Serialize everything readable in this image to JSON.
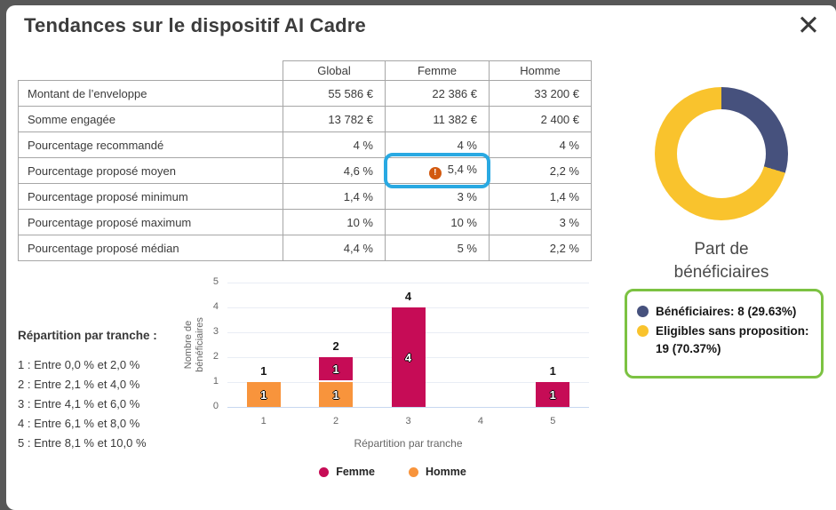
{
  "modal": {
    "title": "Tendances sur le dispositif AI Cadre",
    "close_label": "✕"
  },
  "table": {
    "columns": [
      "Global",
      "Femme",
      "Homme"
    ],
    "rows": [
      {
        "label": "Montant de l’enveloppe",
        "global": "55 586 €",
        "femme": "22 386 €",
        "homme": "33 200 €"
      },
      {
        "label": "Somme engagée",
        "global": "13 782 €",
        "femme": "11 382 €",
        "homme": "2 400 €"
      },
      {
        "label": "Pourcentage recommandé",
        "global": "4 %",
        "femme": "4 %",
        "homme": "4 %"
      },
      {
        "label": "Pourcentage proposé moyen",
        "global": "4,6 %",
        "femme": "5,4 %",
        "homme": "2,2 %",
        "femme_alert": "!"
      },
      {
        "label": "Pourcentage proposé minimum",
        "global": "1,4 %",
        "femme": "3 %",
        "homme": "1,4 %"
      },
      {
        "label": "Pourcentage proposé maximum",
        "global": "10 %",
        "femme": "10 %",
        "homme": "3 %"
      },
      {
        "label": "Pourcentage proposé médian",
        "global": "4,4 %",
        "femme": "5 %",
        "homme": "2,2 %"
      }
    ]
  },
  "tranche_legend": {
    "title": "Répartition par tranche :",
    "items": [
      "1 : Entre 0,0 % et 2,0 %",
      "2 : Entre 2,1 % et 4,0 %",
      "3 : Entre 4,1 % et 6,0 %",
      "4 : Entre 6,1 % et 8,0 %",
      "5 : Entre 8,1 % et 10,0 %"
    ]
  },
  "chart_data": [
    {
      "type": "bar",
      "stacked": true,
      "categories": [
        "1",
        "2",
        "3",
        "4",
        "5"
      ],
      "series": [
        {
          "name": "Femme",
          "color": "#c60c56",
          "values": [
            0,
            1,
            4,
            0,
            1
          ]
        },
        {
          "name": "Homme",
          "color": "#f8943c",
          "values": [
            1,
            1,
            0,
            0,
            0
          ]
        }
      ],
      "stack_order_bottom_up": [
        "Homme",
        "Femme"
      ],
      "totals": [
        1,
        2,
        4,
        0,
        1
      ],
      "title": "",
      "xlabel": "Répartition par tranche",
      "ylabel": "Nombre de bénéficiaires",
      "ylim": [
        0,
        5
      ],
      "yticks": [
        0,
        1,
        2,
        3,
        4,
        5
      ],
      "grid": true,
      "legend_position": "bottom",
      "colors": {
        "grid": "#e9edf5",
        "baseline": "#c7d7f0",
        "tick_text": "#666666"
      }
    },
    {
      "type": "pie",
      "donut": true,
      "title": "Part de bénéficiaires",
      "slices": [
        {
          "label": "Bénéficiaires",
          "value": 8,
          "pct": 29.63,
          "color": "#46517d"
        },
        {
          "label": "Eligibles sans proposition",
          "value": 19,
          "pct": 70.37,
          "color": "#f9c32d"
        }
      ],
      "legend_position": "bottom-box",
      "legend_border_color": "#7cc242"
    }
  ],
  "share_box": {
    "items": [
      {
        "text": "Bénéficiaires: 8 (29.63%)",
        "color": "#46517d"
      },
      {
        "text": "Eligibles sans proposition: 19 (70.37%)",
        "color": "#f9c32d"
      }
    ]
  },
  "highlight": {
    "border_color": "#29a9e2",
    "warning_color": "#d2590f",
    "warning_text_color": "#bf4a0c"
  }
}
